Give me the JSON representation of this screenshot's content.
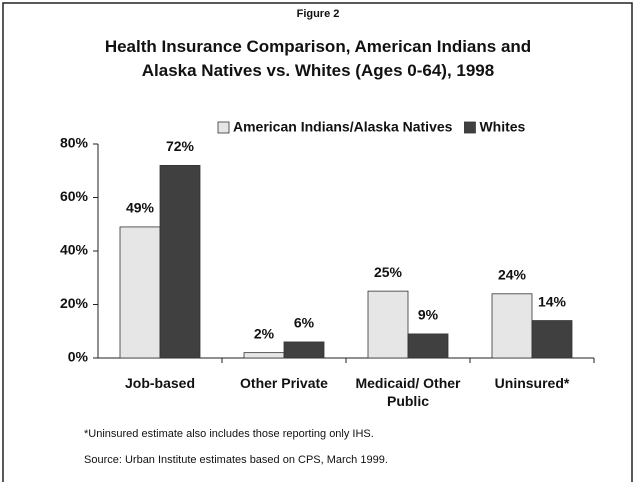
{
  "chart_data": {
    "type": "bar",
    "label": "Figure 2",
    "title": "Health Insurance Comparison, American Indians and Alaska Natives vs. Whites (Ages 0-64), 1998",
    "categories": [
      "Job-based",
      "Other Private",
      "Medicaid/ Other Public",
      "Uninsured*"
    ],
    "series": [
      {
        "name": "American Indians/Alaska Natives",
        "color": "#e6e6e6",
        "values": [
          49,
          2,
          25,
          24
        ],
        "value_labels": [
          "49%",
          "2%",
          "25%",
          "24%"
        ]
      },
      {
        "name": "Whites",
        "color": "#404040",
        "values": [
          72,
          6,
          9,
          14
        ],
        "value_labels": [
          "72%",
          "6%",
          "9%",
          "14%"
        ]
      }
    ],
    "ylim": [
      0,
      80
    ],
    "yticks": [
      {
        "value": 0,
        "label": "0%"
      },
      {
        "value": 20,
        "label": "20%"
      },
      {
        "value": 40,
        "label": "40%"
      },
      {
        "value": 60,
        "label": "60%"
      },
      {
        "value": 80,
        "label": "80%"
      }
    ],
    "legend": "top",
    "footnotes": [
      "*Uninsured estimate also includes those reporting only IHS.",
      "Source:  Urban Institute estimates based on CPS, March 1999."
    ]
  }
}
